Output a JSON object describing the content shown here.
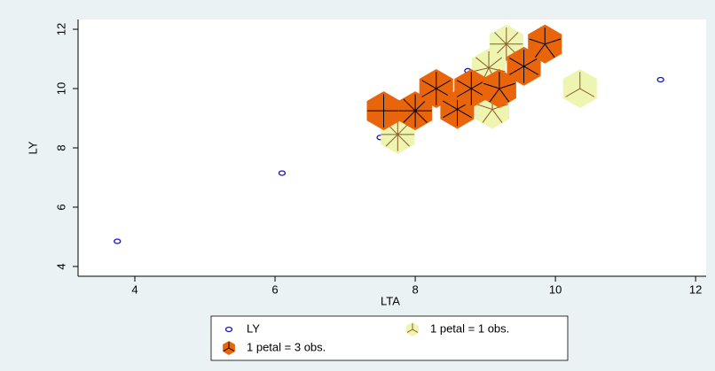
{
  "chart_data": {
    "type": "sunflower",
    "xlabel": "LTA",
    "ylabel": "LY",
    "xlim": [
      3.19,
      12.15
    ],
    "ylim": [
      3.67,
      12.33
    ],
    "xticks": [
      4,
      6,
      8,
      10,
      12
    ],
    "yticks": [
      4,
      6,
      8,
      10,
      12
    ],
    "series": [
      {
        "name": "LY",
        "kind": "point",
        "color": "#1010d0",
        "x": [
          3.75,
          6.1,
          7.5,
          8.75,
          11.5
        ],
        "values": [
          4.85,
          7.15,
          8.35,
          10.6,
          10.3
        ]
      },
      {
        "name": "1 petal = 1 obs.",
        "kind": "light",
        "color": "#eef5b0",
        "petal_color": "#8b5a2b",
        "x": [
          7.75,
          9.3,
          9.05,
          9.1,
          10.35
        ],
        "values": [
          8.45,
          11.5,
          10.7,
          9.3,
          10.0
        ],
        "petals": [
          8,
          8,
          7,
          5,
          3
        ]
      },
      {
        "name": "1 petal = 3 obs.",
        "kind": "dark",
        "color": "#e8650c",
        "petal_color": "#000000",
        "x": [
          7.55,
          8.0,
          8.3,
          8.6,
          8.8,
          9.2,
          9.55,
          9.85
        ],
        "values": [
          9.25,
          9.25,
          10.0,
          9.3,
          10.0,
          10.0,
          10.75,
          11.5
        ],
        "petals": [
          4,
          8,
          6,
          6,
          6,
          5,
          6,
          5
        ]
      }
    ]
  }
}
